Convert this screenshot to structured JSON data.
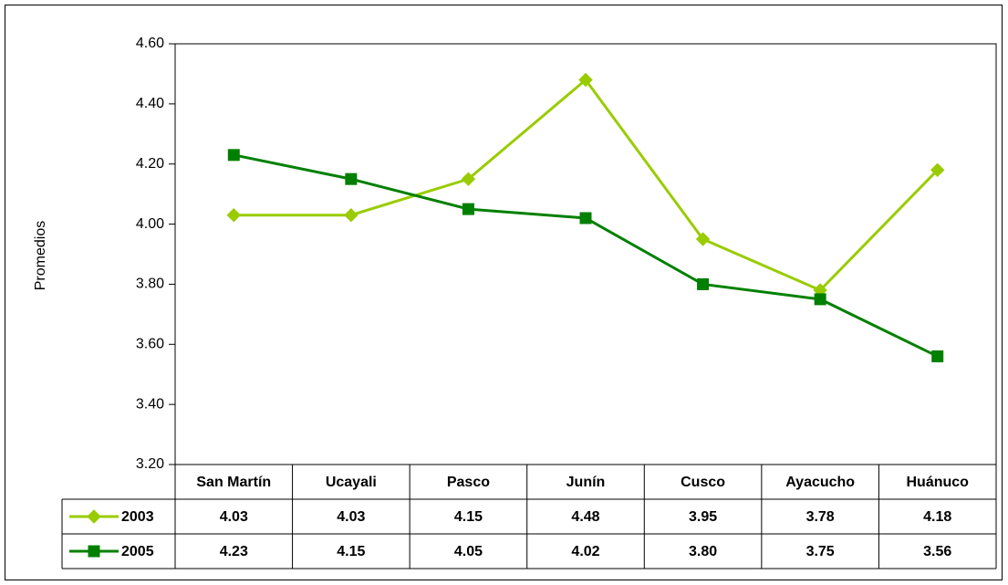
{
  "chart_data": {
    "type": "line",
    "y_label": "Promedios",
    "categories": [
      "San Martín",
      "Ucayali",
      "Pasco",
      "Junín",
      "Cusco",
      "Ayacucho",
      "Huánuco"
    ],
    "series": [
      {
        "name": "2003",
        "color": "#99cc00",
        "marker": "diamond",
        "values": [
          4.03,
          4.03,
          4.15,
          4.48,
          3.95,
          3.78,
          4.18
        ],
        "value_labels": [
          "4.03",
          "4.03",
          "4.15",
          "4.48",
          "3.95",
          "3.78",
          "4.18"
        ]
      },
      {
        "name": "2005",
        "color": "#008000",
        "marker": "square",
        "values": [
          4.23,
          4.15,
          4.05,
          4.02,
          3.8,
          3.75,
          3.56
        ],
        "value_labels": [
          "4.23",
          "4.15",
          "4.05",
          "4.02",
          "3.80",
          "3.75",
          "3.56"
        ]
      }
    ],
    "ylim": [
      3.2,
      4.6
    ],
    "yticks": [
      {
        "value": 3.2,
        "label": "3.20"
      },
      {
        "value": 3.4,
        "label": "3.40"
      },
      {
        "value": 3.6,
        "label": "3.60"
      },
      {
        "value": 3.8,
        "label": "3.80"
      },
      {
        "value": 4.0,
        "label": "4.00"
      },
      {
        "value": 4.2,
        "label": "4.20"
      },
      {
        "value": 4.4,
        "label": "4.40"
      },
      {
        "value": 4.6,
        "label": "4.60"
      }
    ],
    "grid": false,
    "data_table": true
  }
}
